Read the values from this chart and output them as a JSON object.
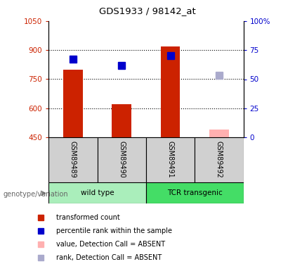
{
  "title": "GDS1933 / 98142_at",
  "samples": [
    "GSM89489",
    "GSM89490",
    "GSM89491",
    "GSM89492"
  ],
  "bar_values": [
    800,
    620,
    920,
    null
  ],
  "bar_color": "#CC2200",
  "absent_bar_value": 490,
  "absent_bar_color": "#FFB0B0",
  "rank_values": [
    855,
    820,
    870,
    null
  ],
  "rank_color": "#0000CC",
  "absent_rank_value": 770,
  "absent_rank_color": "#AAAACC",
  "ylim_left": [
    450,
    1050
  ],
  "ylim_right": [
    0,
    100
  ],
  "yticks_left": [
    450,
    600,
    750,
    900,
    1050
  ],
  "yticks_right": [
    0,
    25,
    50,
    75,
    100
  ],
  "ytick_labels_left": [
    "450",
    "600",
    "750",
    "900",
    "1050"
  ],
  "ytick_labels_right": [
    "0",
    "25",
    "50",
    "75",
    "100%"
  ],
  "left_tick_color": "#CC2200",
  "right_tick_color": "#0000CC",
  "bar_width": 0.4,
  "marker_size": 7,
  "groups": [
    {
      "label": "wild type",
      "start": 0,
      "end": 2,
      "color": "#AAEEBB"
    },
    {
      "label": "TCR transgenic",
      "start": 2,
      "end": 4,
      "color": "#44DD66"
    }
  ],
  "legend_items": [
    {
      "label": "transformed count",
      "color": "#CC2200"
    },
    {
      "label": "percentile rank within the sample",
      "color": "#0000CC"
    },
    {
      "label": "value, Detection Call = ABSENT",
      "color": "#FFB0B0"
    },
    {
      "label": "rank, Detection Call = ABSENT",
      "color": "#AAAACC"
    }
  ]
}
